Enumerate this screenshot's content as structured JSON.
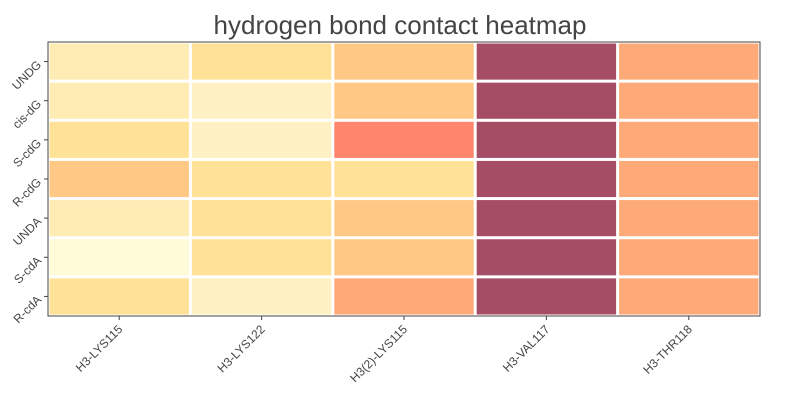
{
  "chart_data": {
    "type": "heatmap",
    "title": "hydrogen bond contact heatmap",
    "xlabel": "",
    "ylabel": "",
    "x_categories": [
      "H3-LYS115",
      "H3-LYS122",
      "H3(2)-LYS115",
      "H3-VAL117",
      "H3-THR118"
    ],
    "y_categories": [
      "UNDG",
      "cis-dG",
      "S-cdG",
      "R-cdG",
      "UNDA",
      "S-cdA",
      "R-cdA"
    ],
    "values": [
      [
        0.2,
        0.3,
        0.45,
        1.0,
        0.55
      ],
      [
        0.2,
        0.15,
        0.45,
        1.0,
        0.55
      ],
      [
        0.3,
        0.15,
        0.7,
        1.0,
        0.55
      ],
      [
        0.45,
        0.3,
        0.3,
        1.0,
        0.55
      ],
      [
        0.2,
        0.3,
        0.45,
        1.0,
        0.55
      ],
      [
        0.05,
        0.3,
        0.45,
        1.0,
        0.55
      ],
      [
        0.3,
        0.15,
        0.55,
        1.0,
        0.55
      ]
    ],
    "colorscale": "YlOrRd",
    "legend": "none",
    "grid": false
  }
}
